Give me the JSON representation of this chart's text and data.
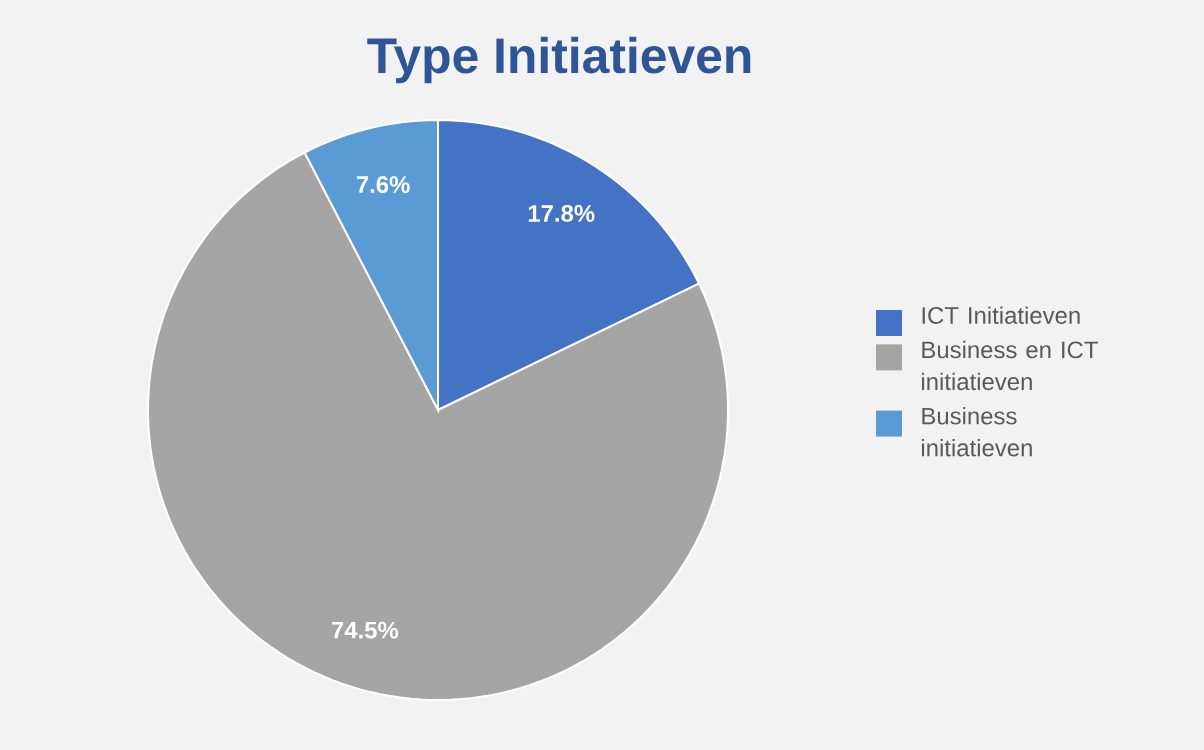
{
  "chart_data": {
    "type": "pie",
    "title": "Type Initiatieven",
    "categories": [
      "ICT Initiatieven",
      "Business en ICT initiatieven",
      "Business initiatieven"
    ],
    "values": [
      17.8,
      74.5,
      7.6
    ],
    "colors": [
      "#4472c4",
      "#a5a5a5",
      "#5b9bd5"
    ],
    "value_labels": [
      "17.8%",
      "74.5%",
      "7.6%"
    ],
    "legend": "right"
  }
}
